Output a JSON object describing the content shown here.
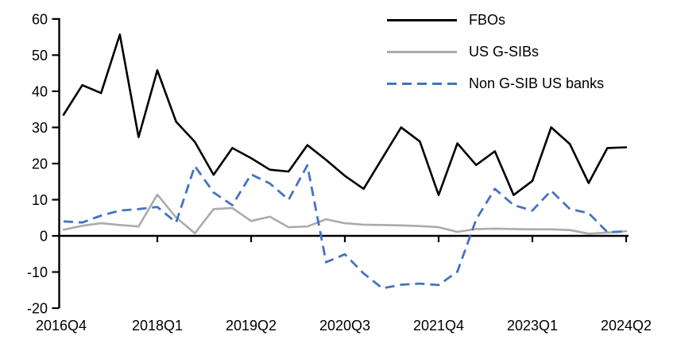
{
  "chart_data": {
    "type": "line",
    "title": "",
    "xlabel": "",
    "ylabel": "",
    "grid": "off",
    "legend_position": "top-right",
    "ylim": [
      -20,
      60
    ],
    "y_ticks": [
      60,
      50,
      40,
      30,
      20,
      10,
      0,
      -10,
      -20
    ],
    "x_categories": [
      "2016Q4",
      "2017Q1",
      "2017Q2",
      "2017Q3",
      "2017Q4",
      "2018Q1",
      "2018Q2",
      "2018Q3",
      "2018Q4",
      "2019Q1",
      "2019Q2",
      "2019Q3",
      "2019Q4",
      "2020Q1",
      "2020Q2",
      "2020Q3",
      "2020Q4",
      "2021Q1",
      "2021Q2",
      "2021Q3",
      "2021Q4",
      "2022Q1",
      "2022Q2",
      "2022Q3",
      "2022Q4",
      "2023Q1",
      "2023Q2",
      "2023Q3",
      "2023Q4",
      "2024Q1",
      "2024Q2"
    ],
    "x_tick_label_indices": [
      0,
      5,
      10,
      15,
      20,
      25,
      30
    ],
    "x_tick_labels": [
      "2016Q4",
      "2018Q1",
      "2019Q2",
      "2020Q3",
      "2021Q4",
      "2023Q1",
      "2024Q2"
    ],
    "series": [
      {
        "name": "FBOs",
        "color": "#000000",
        "style": "solid",
        "values": [
          33.5,
          41.7,
          39.5,
          55.7,
          27.3,
          45.8,
          31.6,
          26.0,
          16.9,
          24.3,
          21.5,
          18.3,
          17.8,
          25.1,
          21.0,
          16.6,
          13.0,
          21.5,
          30.0,
          26.1,
          11.3,
          25.6,
          19.6,
          23.4,
          11.3,
          15.2,
          30.0,
          25.4,
          14.6,
          24.3,
          24.5
        ]
      },
      {
        "name": "US G-SIBs",
        "color": "#ababab",
        "style": "solid",
        "values": [
          1.7,
          2.8,
          3.5,
          3.0,
          2.6,
          11.4,
          5.1,
          0.7,
          7.4,
          7.7,
          4.1,
          5.3,
          2.4,
          2.6,
          4.6,
          3.5,
          3.1,
          3.0,
          2.9,
          2.7,
          2.4,
          1.1,
          1.9,
          2.0,
          1.9,
          1.8,
          1.8,
          1.6,
          0.6,
          0.9,
          1.3
        ]
      },
      {
        "name": "Non G-SIB US banks",
        "color": "#4472c4",
        "style": "dashed",
        "values": [
          4.0,
          3.7,
          5.6,
          7.0,
          7.4,
          8.0,
          3.7,
          19.3,
          12.0,
          8.5,
          17.0,
          14.5,
          10.0,
          19.5,
          -7.3,
          -5.1,
          -10.4,
          -14.5,
          -13.5,
          -13.2,
          -13.6,
          -9.9,
          4.5,
          13.0,
          8.5,
          7.0,
          12.5,
          7.4,
          6.3,
          1.0,
          1.2
        ]
      }
    ]
  }
}
